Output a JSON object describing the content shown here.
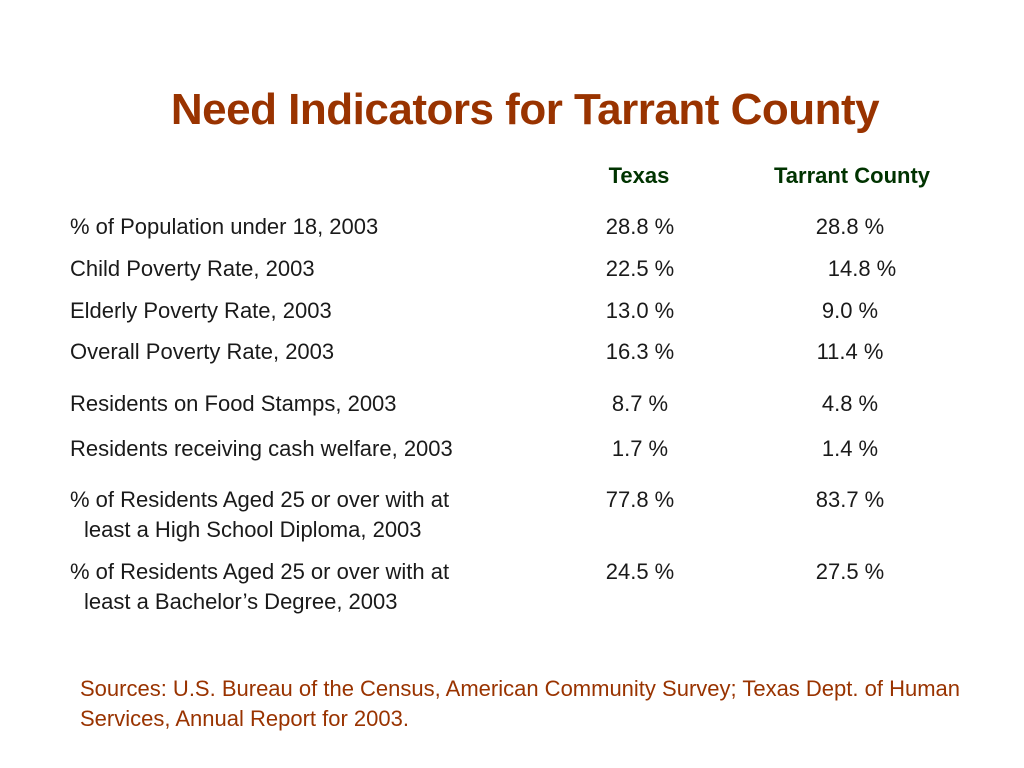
{
  "title": "Need Indicators for Tarrant County",
  "columns": {
    "texas": "Texas",
    "county": "Tarrant County"
  },
  "rows": [
    {
      "label": "% of Population under 18, 2003",
      "label2": "",
      "texas": "28.8 %",
      "county": "28.8 %"
    },
    {
      "label": "Child Poverty Rate, 2003",
      "label2": "",
      "texas": "22.5 %",
      "county": "14.8 %"
    },
    {
      "label": "Elderly Poverty Rate, 2003",
      "label2": "",
      "texas": "13.0 %",
      "county": "9.0 %"
    },
    {
      "label": "Overall Poverty Rate, 2003",
      "label2": "",
      "texas": "16.3 %",
      "county": "11.4 %"
    },
    {
      "label": "Residents on Food Stamps, 2003",
      "label2": "",
      "texas": "8.7 %",
      "county": "4.8 %"
    },
    {
      "label": "Residents receiving cash welfare, 2003",
      "label2": "",
      "texas": "1.7 %",
      "county": "1.4 %"
    },
    {
      "label": "% of Residents Aged 25 or over with at",
      "label2": "least a High School Diploma, 2003",
      "texas": "77.8 %",
      "county": "83.7 %"
    },
    {
      "label": "% of Residents Aged 25 or over with at",
      "label2": "least a Bachelor’s Degree, 2003",
      "texas": "24.5 %",
      "county": "27.5 %"
    }
  ],
  "sources": "Sources: U.S. Bureau of the Census, American Community Survey; Texas Dept. of Human Services, Annual Report for 2003.",
  "colors": {
    "title": "#993300",
    "column_headers": "#003300",
    "body_text": "#1a1a1a",
    "sources": "#993300"
  }
}
